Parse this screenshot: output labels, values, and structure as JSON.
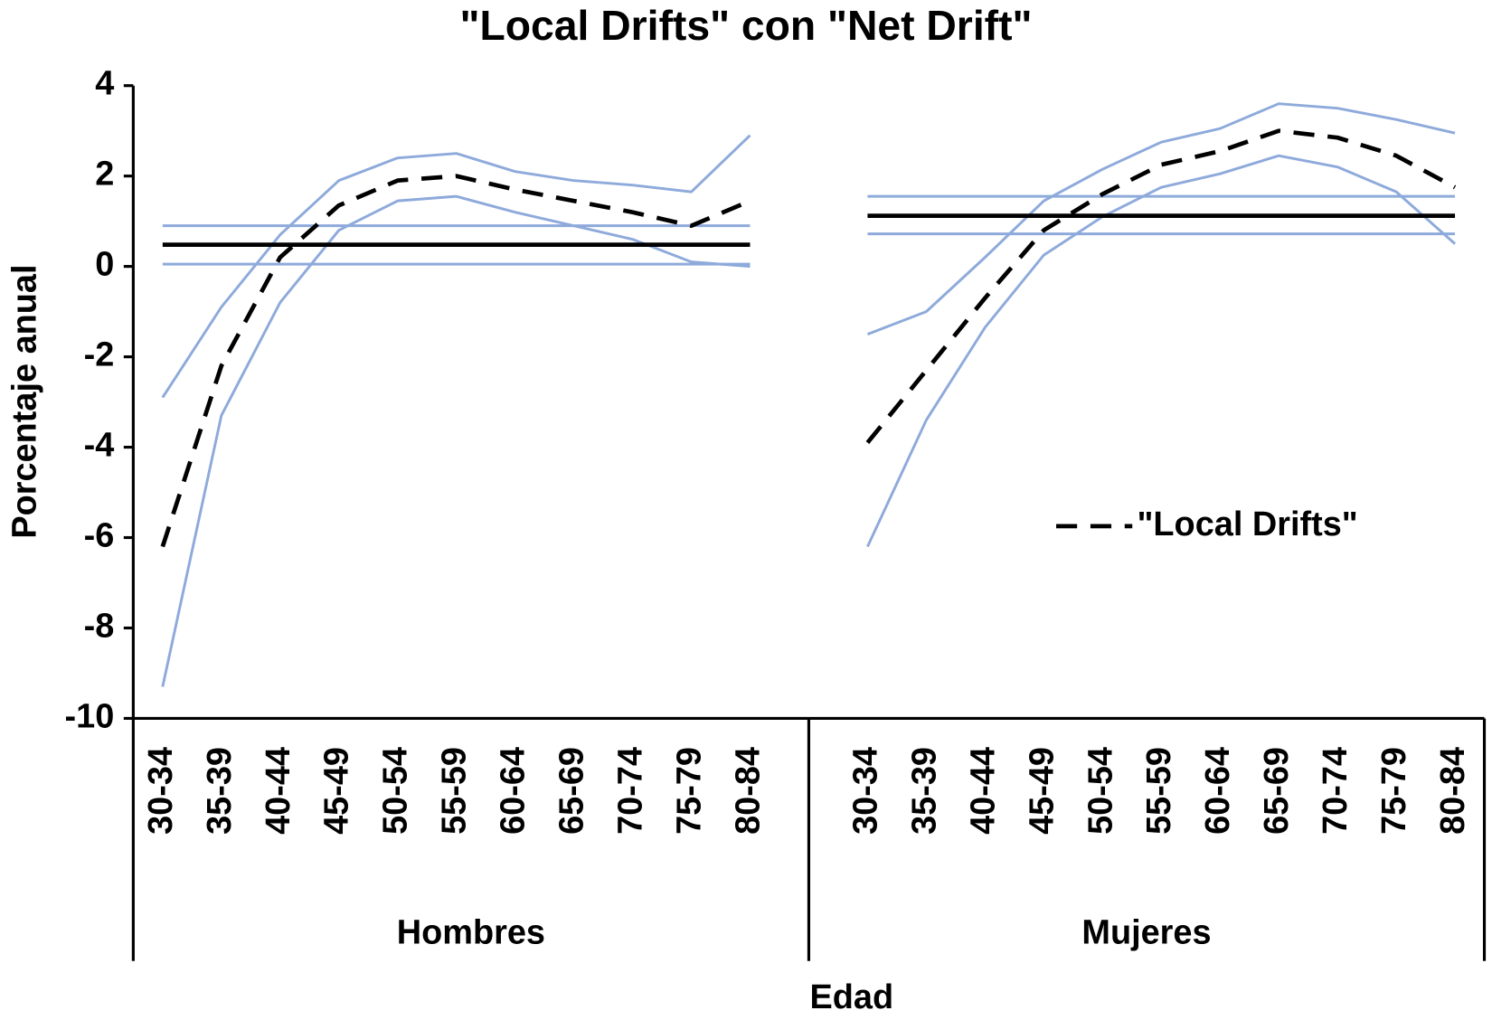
{
  "chart_data": {
    "type": "line",
    "title": "\"Local Drifts\" con \"Net Drift\"",
    "y_label": "Porcentaje anual",
    "x_label": "Edad",
    "groups": [
      "Hombres",
      "Mujeres"
    ],
    "categories": [
      "30-34",
      "35-39",
      "40-44",
      "45-49",
      "50-54",
      "55-59",
      "60-64",
      "65-69",
      "70-74",
      "75-79",
      "80-84",
      null,
      "30-34",
      "35-39",
      "40-44",
      "45-49",
      "50-54",
      "55-59",
      "60-64",
      "65-69",
      "70-74",
      "75-79",
      "80-84"
    ],
    "ylim": [
      -10,
      4
    ],
    "yticks": [
      4,
      2,
      0,
      -2,
      -4,
      -6,
      -8,
      -10
    ],
    "series": [
      {
        "color": "#8eaadb",
        "values": [
          -2.9,
          -0.9,
          0.7,
          1.9,
          2.4,
          2.5,
          2.1,
          1.9,
          1.8,
          1.65,
          2.9,
          null,
          -1.5,
          -1.0,
          0.2,
          1.45,
          2.15,
          2.75,
          3.05,
          3.6,
          3.5,
          3.25,
          2.95
        ]
      },
      {
        "color": "#8eaadb",
        "values": [
          -9.3,
          -3.3,
          -0.8,
          0.8,
          1.45,
          1.55,
          1.2,
          0.9,
          0.6,
          0.1,
          0.0,
          null,
          -6.2,
          -3.4,
          -1.35,
          0.25,
          1.1,
          1.75,
          2.05,
          2.45,
          2.2,
          1.65,
          0.5
        ]
      },
      {
        "color": "#8eaadb",
        "values": [
          0.9,
          0.9,
          0.9,
          0.9,
          0.9,
          0.9,
          0.9,
          0.9,
          0.9,
          0.9,
          0.9,
          null,
          1.55,
          1.55,
          1.55,
          1.55,
          1.55,
          1.55,
          1.55,
          1.55,
          1.55,
          1.55,
          1.55
        ]
      },
      {
        "color": "#8eaadb",
        "values": [
          0.05,
          0.05,
          0.05,
          0.05,
          0.05,
          0.05,
          0.05,
          0.05,
          0.05,
          0.05,
          0.05,
          null,
          0.72,
          0.72,
          0.72,
          0.72,
          0.72,
          0.72,
          0.72,
          0.72,
          0.72,
          0.72,
          0.72
        ]
      },
      {
        "color": "#000000",
        "values": [
          0.48,
          0.48,
          0.48,
          0.48,
          0.48,
          0.48,
          0.48,
          0.48,
          0.48,
          0.48,
          0.48,
          null,
          1.12,
          1.12,
          1.12,
          1.12,
          1.12,
          1.12,
          1.12,
          1.12,
          1.12,
          1.12,
          1.12
        ]
      },
      {
        "name": "\"Local Drifts\"",
        "color": "#000000",
        "dashed": true,
        "values": [
          -6.2,
          -2.2,
          0.2,
          1.35,
          1.9,
          2.0,
          1.7,
          1.45,
          1.2,
          0.9,
          1.45,
          null,
          -3.9,
          -2.3,
          -0.7,
          0.8,
          1.6,
          2.25,
          2.55,
          3.0,
          2.85,
          2.45,
          1.75
        ]
      }
    ]
  }
}
